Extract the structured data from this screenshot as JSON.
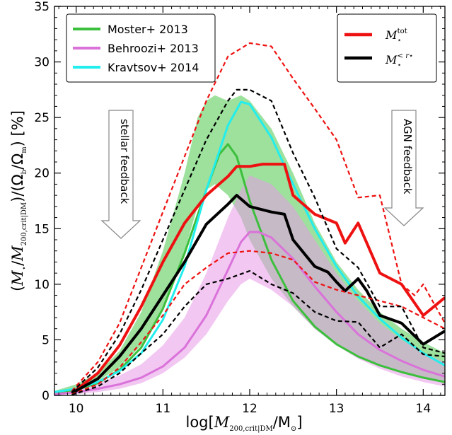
{
  "chart_data": {
    "type": "line",
    "xlabel": "log[M_200,crit|DM/M_⊙]",
    "ylabel": "(M_⋆/M_200,crit|DM)/(Ω_b/Ω_m) [%]",
    "xlim": [
      9.75,
      14.25
    ],
    "ylim": [
      0,
      35
    ],
    "xticks": [
      10,
      11,
      12,
      13,
      14
    ],
    "yticks": [
      0,
      5,
      10,
      15,
      20,
      25,
      30,
      35
    ],
    "grid": false,
    "legends": [
      {
        "placement": "top-left",
        "entries": [
          "Moster+ 2013",
          "Behroozi+ 2013",
          "Kravtsov+ 2014"
        ]
      },
      {
        "placement": "top-right",
        "entries": [
          "M⋆^tot",
          "M⋆^<r⋆"
        ]
      }
    ],
    "annotations": [
      {
        "text": "stellar feedback",
        "direction": "down",
        "x": 10.65
      },
      {
        "text": "AGN feedback",
        "direction": "down",
        "x": 13.7
      }
    ],
    "bands": [
      {
        "name": "Moster+ 2013",
        "color": "#4cc84c",
        "x": [
          9.75,
          10,
          10.25,
          10.5,
          10.75,
          11,
          11.25,
          11.4,
          11.5,
          11.6,
          11.75,
          11.9,
          12,
          12.25,
          12.5,
          12.75,
          13,
          13.25,
          13.5,
          13.75,
          14,
          14.25
        ],
        "lower": [
          0.2,
          0.6,
          1.3,
          2.5,
          4.5,
          8,
          13,
          17,
          18.5,
          19,
          18,
          16,
          14,
          10.5,
          8,
          6,
          4.5,
          3.4,
          2.6,
          2,
          1.5,
          1.1
        ],
        "upper": [
          0.4,
          1,
          2,
          4,
          7.5,
          13,
          20,
          25,
          26.5,
          27,
          26.5,
          27,
          26.5,
          24,
          20,
          15.5,
          12,
          9.5,
          7.5,
          6,
          4.8,
          3.8
        ]
      },
      {
        "name": "Behroozi+ 2013",
        "color": "#e89ae8",
        "x": [
          9.75,
          10,
          10.25,
          10.5,
          10.75,
          11,
          11.25,
          11.5,
          11.75,
          11.9,
          12,
          12.25,
          12.5,
          12.75,
          13,
          13.25,
          13.5,
          13.75,
          14,
          14.25
        ],
        "lower": [
          0.05,
          0.1,
          0.3,
          0.6,
          1.1,
          2,
          3.4,
          5.5,
          8.5,
          10,
          10.5,
          9.5,
          8,
          6,
          4.5,
          3.3,
          2.4,
          1.7,
          1.2,
          0.8
        ],
        "upper": [
          0.3,
          0.6,
          1.1,
          1.8,
          2.8,
          4.5,
          7,
          11,
          16,
          18.5,
          19.8,
          19,
          17,
          14,
          11,
          8.5,
          6.5,
          5,
          3.8,
          3
        ]
      }
    ],
    "series": [
      {
        "name": "Moster+ 2013",
        "color": "#3cbf3c",
        "style": "solid",
        "x": [
          9.75,
          10,
          10.25,
          10.5,
          10.75,
          11,
          11.25,
          11.5,
          11.65,
          11.75,
          11.85,
          12,
          12.25,
          12.5,
          12.75,
          13,
          13.25,
          13.5,
          13.75,
          14,
          14.25
        ],
        "y": [
          0.2,
          0.5,
          1.1,
          2.3,
          4.3,
          7.8,
          12.8,
          18.5,
          21.7,
          22.6,
          21.5,
          17.5,
          12.2,
          8.5,
          6.2,
          4.6,
          3.5,
          2.7,
          2.1,
          1.6,
          1.2
        ]
      },
      {
        "name": "Behroozi+ 2013",
        "color": "#da72da",
        "style": "solid",
        "x": [
          9.75,
          10,
          10.25,
          10.5,
          10.75,
          11,
          11.25,
          11.5,
          11.75,
          11.9,
          12,
          12.1,
          12.25,
          12.5,
          12.75,
          13,
          13.25,
          13.5,
          13.75,
          14,
          14.25
        ],
        "y": [
          0.1,
          0.3,
          0.6,
          1,
          1.6,
          2.6,
          4.3,
          7.2,
          11.3,
          13.8,
          14.7,
          14.7,
          14.2,
          12.3,
          9.8,
          7.5,
          5.5,
          4.1,
          3.1,
          2.3,
          1.7
        ]
      },
      {
        "name": "Kravtsov+ 2014",
        "color": "#22eeee",
        "style": "solid",
        "x": [
          9.75,
          10,
          10.25,
          10.5,
          10.75,
          11,
          11.25,
          11.5,
          11.75,
          11.9,
          12,
          12.25,
          12.5,
          12.75,
          13,
          13.25,
          13.5,
          13.75,
          14,
          14.25
        ],
        "y": [
          0.3,
          0.6,
          1.2,
          2.2,
          3.8,
          6.8,
          11.6,
          18.5,
          24.3,
          26.4,
          26.2,
          23.2,
          19,
          15,
          11.6,
          8.9,
          6.9,
          5.2,
          3.8,
          2.7
        ]
      },
      {
        "name": "M⋆^tot",
        "color": "#ee1111",
        "style": "solid",
        "x": [
          9.95,
          10.25,
          10.5,
          10.75,
          11,
          11.25,
          11.5,
          11.75,
          11.85,
          12,
          12.15,
          12.25,
          12.4,
          12.5,
          12.75,
          13,
          13.1,
          13.25,
          13.35,
          13.5,
          13.75,
          14,
          14.25
        ],
        "y": [
          0.2,
          2,
          4.5,
          8,
          12,
          15.5,
          18,
          19.7,
          20.6,
          20.6,
          20.8,
          20.8,
          20.8,
          18,
          16.3,
          15.5,
          13.7,
          15.5,
          13.7,
          11,
          10,
          7.2,
          8.8
        ]
      },
      {
        "name": "M⋆^<r⋆",
        "color": "#000000",
        "style": "solid",
        "x": [
          9.95,
          10.25,
          10.5,
          10.75,
          11,
          11.25,
          11.5,
          11.75,
          11.85,
          12,
          12.25,
          12.4,
          12.5,
          12.75,
          12.9,
          13,
          13.1,
          13.25,
          13.35,
          13.5,
          13.75,
          14,
          14.25
        ],
        "y": [
          0.2,
          1.5,
          3.5,
          6,
          9,
          12,
          15.4,
          17.2,
          18,
          17,
          16.5,
          16.3,
          14,
          11.6,
          11.1,
          10.2,
          9.4,
          10.5,
          9.4,
          7.2,
          6.5,
          4.6,
          5.8
        ]
      },
      {
        "name": "M⋆^tot upper",
        "color": "#ee1111",
        "style": "dashed",
        "x": [
          9.95,
          10.25,
          10.5,
          10.75,
          11,
          11.25,
          11.5,
          11.75,
          12,
          12.25,
          12.5,
          12.75,
          13,
          13.25,
          13.5,
          13.75,
          13.9,
          14,
          14.25
        ],
        "y": [
          0.4,
          3,
          6.5,
          11.5,
          16.5,
          21.5,
          26.5,
          30.5,
          31.7,
          31.4,
          28.5,
          25.8,
          23,
          17.8,
          18,
          10,
          9,
          10,
          6.5
        ]
      },
      {
        "name": "M⋆^tot lower",
        "color": "#ee1111",
        "style": "dashed",
        "x": [
          9.95,
          10.25,
          10.5,
          10.75,
          11,
          11.25,
          11.5,
          11.75,
          12,
          12.25,
          12.5,
          12.75,
          13,
          13.25,
          13.5,
          13.75,
          14,
          14.25
        ],
        "y": [
          0.1,
          1,
          2.5,
          4.8,
          7.2,
          10,
          11.5,
          12.8,
          13,
          12.8,
          12.2,
          10.2,
          9.5,
          9,
          8.5,
          8,
          7,
          6
        ]
      },
      {
        "name": "M⋆^<r⋆ upper",
        "color": "#000000",
        "style": "dashed",
        "x": [
          9.95,
          10.25,
          10.5,
          10.75,
          11,
          11.25,
          11.5,
          11.75,
          11.85,
          12,
          12.25,
          12.5,
          12.75,
          13,
          13.25,
          13.5,
          13.75,
          14,
          14.25
        ],
        "y": [
          0.3,
          2.5,
          5.5,
          9.5,
          14,
          18.5,
          23,
          26.5,
          27.5,
          27.5,
          26.5,
          21.8,
          17.8,
          13.2,
          11.5,
          8,
          8,
          4.3,
          3.8
        ]
      },
      {
        "name": "M⋆^<r⋆ lower",
        "color": "#000000",
        "style": "dashed",
        "x": [
          9.95,
          10.25,
          10.5,
          10.75,
          11,
          11.25,
          11.5,
          11.75,
          12,
          12.25,
          12.5,
          12.75,
          13,
          13.25,
          13.5,
          13.75,
          14,
          14.25
        ],
        "y": [
          0.05,
          0.8,
          2,
          3.8,
          5.5,
          8,
          10,
          10.5,
          11.2,
          10,
          9.2,
          7.5,
          6.7,
          6.6,
          4.3,
          5.5,
          3.7,
          3.5
        ]
      }
    ]
  }
}
